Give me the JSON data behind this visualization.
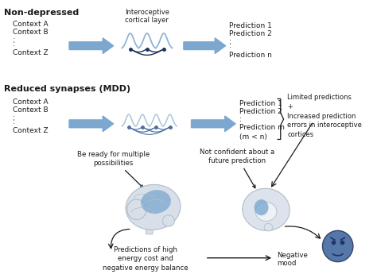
{
  "bg_color": "#ffffff",
  "arrow_blue": "#7ba7d0",
  "text_color": "#1a1a1a",
  "dark_navy": "#1a3060",
  "synapse_light": "#8fb4d8",
  "synapse_mid": "#6090c0",
  "brain_base": "#d8dfe8",
  "brain_hl": "#7ba7d0",
  "brain_edge": "#b0bec8",
  "sad_face": "#5577aa",
  "title1": "Non-depressed",
  "title2": "Reduced synapses (MDD)",
  "intero_label": "Interoceptive\ncortical layer",
  "ctx_labels": [
    "Context A",
    "Context B",
    ":",
    ":",
    "Context Z"
  ],
  "pred1_labels": [
    "Prediction 1",
    "Prediction 2",
    ":",
    ":",
    "Prediction n"
  ],
  "pred2_labels": [
    "Prediction 1",
    "Prediction 2",
    ":",
    "Prediction m",
    "(m < n)"
  ],
  "limited": "Limited predictions\n+\nIncreased prediction\nerrors in interoceptive\ncortices",
  "ann1": "Be ready for multiple\npossibilities",
  "ann2": "Not confident about a\nfuture prediction",
  "ann3": "Predictions of high\nenergy cost and\nnegative energy balance",
  "ann4": "Negative\nmood"
}
